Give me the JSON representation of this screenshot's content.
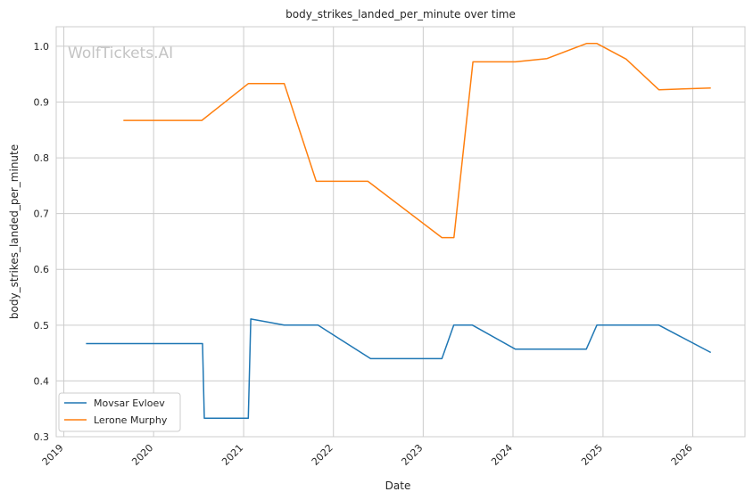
{
  "chart_data": {
    "type": "line",
    "title": "body_strikes_landed_per_minute over time",
    "xlabel": "Date",
    "ylabel": "body_strikes_landed_per_minute",
    "watermark": "WolfTickets.AI",
    "xlim": [
      "2018-12-01",
      "2026-08-01"
    ],
    "ylim": [
      0.3,
      1.035
    ],
    "x_ticks": [
      "2019",
      "2020",
      "2021",
      "2022",
      "2023",
      "2024",
      "2025",
      "2026"
    ],
    "y_ticks": [
      "0.3",
      "0.4",
      "0.5",
      "0.6",
      "0.7",
      "0.8",
      "0.9",
      "1.0"
    ],
    "grid": true,
    "legend_position": "lower-left",
    "series": [
      {
        "name": "Movsar Evloev",
        "color": "#1f77b4",
        "points": [
          [
            "2019-04-01",
            0.467
          ],
          [
            "2020-07-18",
            0.467
          ],
          [
            "2020-07-25",
            0.333
          ],
          [
            "2021-01-20",
            0.333
          ],
          [
            "2021-01-30",
            0.511
          ],
          [
            "2021-06-15",
            0.5
          ],
          [
            "2021-10-30",
            0.5
          ],
          [
            "2022-06-01",
            0.44
          ],
          [
            "2023-03-18",
            0.44
          ],
          [
            "2023-05-05",
            0.5
          ],
          [
            "2023-07-20",
            0.5
          ],
          [
            "2024-01-10",
            0.457
          ],
          [
            "2024-10-25",
            0.457
          ],
          [
            "2024-12-07",
            0.5
          ],
          [
            "2025-08-16",
            0.5
          ],
          [
            "2026-03-15",
            0.451
          ]
        ]
      },
      {
        "name": "Lerone Murphy",
        "color": "#ff7f0e",
        "points": [
          [
            "2019-08-31",
            0.867
          ],
          [
            "2020-07-15",
            0.867
          ],
          [
            "2021-01-20",
            0.933
          ],
          [
            "2021-06-15",
            0.933
          ],
          [
            "2021-10-23",
            0.758
          ],
          [
            "2022-05-21",
            0.758
          ],
          [
            "2023-03-18",
            0.657
          ],
          [
            "2023-05-06",
            0.657
          ],
          [
            "2023-07-22",
            0.972
          ],
          [
            "2024-01-10",
            0.972
          ],
          [
            "2024-05-18",
            0.978
          ],
          [
            "2024-10-26",
            1.005
          ],
          [
            "2024-12-07",
            1.005
          ],
          [
            "2025-04-05",
            0.977
          ],
          [
            "2025-08-16",
            0.922
          ],
          [
            "2026-03-15",
            0.925
          ]
        ]
      }
    ]
  }
}
